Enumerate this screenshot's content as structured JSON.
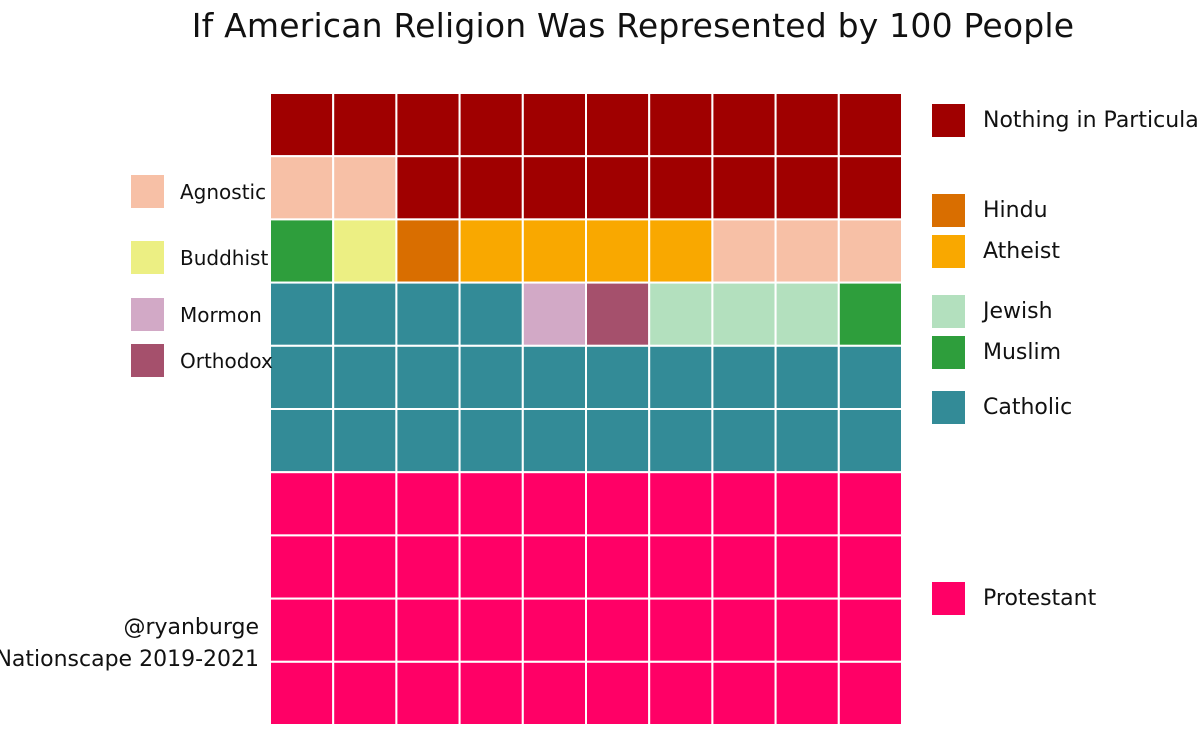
{
  "title": "If American Religion Was Represented by 100 People",
  "credit": {
    "author": "@ryanburge",
    "source": "Nationscape 2019-2021"
  },
  "chart_data": {
    "type": "waffle",
    "title": "If American Religion Was Represented by 100 People",
    "grid": {
      "rows": 10,
      "cols": 10
    },
    "categories": [
      {
        "name": "Nothing in Particular",
        "value": 18,
        "color": "#a00000"
      },
      {
        "name": "Agnostic",
        "value": 5,
        "color": "#f7c0a6"
      },
      {
        "name": "Buddhist",
        "value": 1,
        "color": "#ecef83"
      },
      {
        "name": "Hindu",
        "value": 1,
        "color": "#d96e00"
      },
      {
        "name": "Atheist",
        "value": 4,
        "color": "#f9a800"
      },
      {
        "name": "Muslim",
        "value": 2,
        "color": "#2e9e3c"
      },
      {
        "name": "Jewish",
        "value": 3,
        "color": "#b3e0be"
      },
      {
        "name": "Mormon",
        "value": 1,
        "color": "#d2a9c6"
      },
      {
        "name": "Orthodox",
        "value": 1,
        "color": "#a5506c"
      },
      {
        "name": "Catholic",
        "value": 24,
        "color": "#338b97"
      },
      {
        "name": "Protestant",
        "value": 40,
        "color": "#ff0066"
      }
    ],
    "cells": [
      "Nothing in Particular",
      "Nothing in Particular",
      "Nothing in Particular",
      "Nothing in Particular",
      "Nothing in Particular",
      "Nothing in Particular",
      "Nothing in Particular",
      "Nothing in Particular",
      "Nothing in Particular",
      "Nothing in Particular",
      "Agnostic",
      "Agnostic",
      "Nothing in Particular",
      "Nothing in Particular",
      "Nothing in Particular",
      "Nothing in Particular",
      "Nothing in Particular",
      "Nothing in Particular",
      "Nothing in Particular",
      "Nothing in Particular",
      "Muslim",
      "Buddhist",
      "Hindu",
      "Atheist",
      "Atheist",
      "Atheist",
      "Atheist",
      "Agnostic",
      "Agnostic",
      "Agnostic",
      "Catholic",
      "Catholic",
      "Catholic",
      "Catholic",
      "Mormon",
      "Orthodox",
      "Jewish",
      "Jewish",
      "Jewish",
      "Muslim",
      "Catholic",
      "Catholic",
      "Catholic",
      "Catholic",
      "Catholic",
      "Catholic",
      "Catholic",
      "Catholic",
      "Catholic",
      "Catholic",
      "Catholic",
      "Catholic",
      "Catholic",
      "Catholic",
      "Catholic",
      "Catholic",
      "Catholic",
      "Catholic",
      "Catholic",
      "Catholic",
      "Protestant",
      "Protestant",
      "Protestant",
      "Protestant",
      "Protestant",
      "Protestant",
      "Protestant",
      "Protestant",
      "Protestant",
      "Protestant",
      "Protestant",
      "Protestant",
      "Protestant",
      "Protestant",
      "Protestant",
      "Protestant",
      "Protestant",
      "Protestant",
      "Protestant",
      "Protestant",
      "Protestant",
      "Protestant",
      "Protestant",
      "Protestant",
      "Protestant",
      "Protestant",
      "Protestant",
      "Protestant",
      "Protestant",
      "Protestant",
      "Protestant",
      "Protestant",
      "Protestant",
      "Protestant",
      "Protestant",
      "Protestant",
      "Protestant",
      "Protestant",
      "Protestant",
      "Protestant"
    ],
    "legend_left": [
      "Agnostic",
      "Buddhist",
      "Mormon",
      "Orthodox"
    ],
    "legend_right": [
      "Nothing in Particular",
      "Hindu",
      "Atheist",
      "Jewish",
      "Muslim",
      "Catholic",
      "Protestant"
    ],
    "legend_placement": "split left and right"
  }
}
